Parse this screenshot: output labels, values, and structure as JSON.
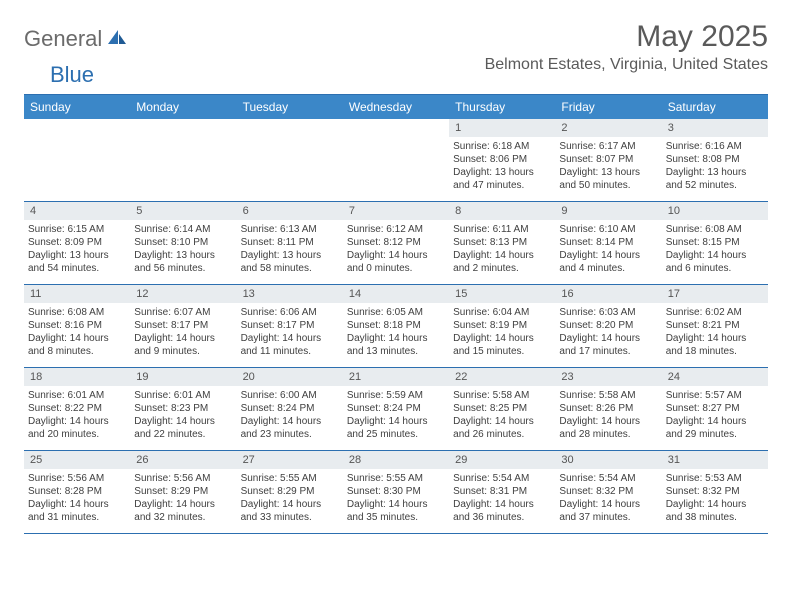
{
  "brand": {
    "general": "General",
    "blue": "Blue"
  },
  "title": "May 2025",
  "location": "Belmont Estates, Virginia, United States",
  "colors": {
    "header_bg": "#3b87c8",
    "rule": "#2c6fb0",
    "band": "#e8ecef",
    "text": "#404040",
    "title_text": "#5a5a5a"
  },
  "dow": [
    "Sunday",
    "Monday",
    "Tuesday",
    "Wednesday",
    "Thursday",
    "Friday",
    "Saturday"
  ],
  "weeks": [
    [
      null,
      null,
      null,
      null,
      {
        "n": "1",
        "sr": "6:18 AM",
        "ss": "8:06 PM",
        "dl1": "13 hours",
        "dl2": "and 47 minutes."
      },
      {
        "n": "2",
        "sr": "6:17 AM",
        "ss": "8:07 PM",
        "dl1": "13 hours",
        "dl2": "and 50 minutes."
      },
      {
        "n": "3",
        "sr": "6:16 AM",
        "ss": "8:08 PM",
        "dl1": "13 hours",
        "dl2": "and 52 minutes."
      }
    ],
    [
      {
        "n": "4",
        "sr": "6:15 AM",
        "ss": "8:09 PM",
        "dl1": "13 hours",
        "dl2": "and 54 minutes."
      },
      {
        "n": "5",
        "sr": "6:14 AM",
        "ss": "8:10 PM",
        "dl1": "13 hours",
        "dl2": "and 56 minutes."
      },
      {
        "n": "6",
        "sr": "6:13 AM",
        "ss": "8:11 PM",
        "dl1": "13 hours",
        "dl2": "and 58 minutes."
      },
      {
        "n": "7",
        "sr": "6:12 AM",
        "ss": "8:12 PM",
        "dl1": "14 hours",
        "dl2": "and 0 minutes."
      },
      {
        "n": "8",
        "sr": "6:11 AM",
        "ss": "8:13 PM",
        "dl1": "14 hours",
        "dl2": "and 2 minutes."
      },
      {
        "n": "9",
        "sr": "6:10 AM",
        "ss": "8:14 PM",
        "dl1": "14 hours",
        "dl2": "and 4 minutes."
      },
      {
        "n": "10",
        "sr": "6:08 AM",
        "ss": "8:15 PM",
        "dl1": "14 hours",
        "dl2": "and 6 minutes."
      }
    ],
    [
      {
        "n": "11",
        "sr": "6:08 AM",
        "ss": "8:16 PM",
        "dl1": "14 hours",
        "dl2": "and 8 minutes."
      },
      {
        "n": "12",
        "sr": "6:07 AM",
        "ss": "8:17 PM",
        "dl1": "14 hours",
        "dl2": "and 9 minutes."
      },
      {
        "n": "13",
        "sr": "6:06 AM",
        "ss": "8:17 PM",
        "dl1": "14 hours",
        "dl2": "and 11 minutes."
      },
      {
        "n": "14",
        "sr": "6:05 AM",
        "ss": "8:18 PM",
        "dl1": "14 hours",
        "dl2": "and 13 minutes."
      },
      {
        "n": "15",
        "sr": "6:04 AM",
        "ss": "8:19 PM",
        "dl1": "14 hours",
        "dl2": "and 15 minutes."
      },
      {
        "n": "16",
        "sr": "6:03 AM",
        "ss": "8:20 PM",
        "dl1": "14 hours",
        "dl2": "and 17 minutes."
      },
      {
        "n": "17",
        "sr": "6:02 AM",
        "ss": "8:21 PM",
        "dl1": "14 hours",
        "dl2": "and 18 minutes."
      }
    ],
    [
      {
        "n": "18",
        "sr": "6:01 AM",
        "ss": "8:22 PM",
        "dl1": "14 hours",
        "dl2": "and 20 minutes."
      },
      {
        "n": "19",
        "sr": "6:01 AM",
        "ss": "8:23 PM",
        "dl1": "14 hours",
        "dl2": "and 22 minutes."
      },
      {
        "n": "20",
        "sr": "6:00 AM",
        "ss": "8:24 PM",
        "dl1": "14 hours",
        "dl2": "and 23 minutes."
      },
      {
        "n": "21",
        "sr": "5:59 AM",
        "ss": "8:24 PM",
        "dl1": "14 hours",
        "dl2": "and 25 minutes."
      },
      {
        "n": "22",
        "sr": "5:58 AM",
        "ss": "8:25 PM",
        "dl1": "14 hours",
        "dl2": "and 26 minutes."
      },
      {
        "n": "23",
        "sr": "5:58 AM",
        "ss": "8:26 PM",
        "dl1": "14 hours",
        "dl2": "and 28 minutes."
      },
      {
        "n": "24",
        "sr": "5:57 AM",
        "ss": "8:27 PM",
        "dl1": "14 hours",
        "dl2": "and 29 minutes."
      }
    ],
    [
      {
        "n": "25",
        "sr": "5:56 AM",
        "ss": "8:28 PM",
        "dl1": "14 hours",
        "dl2": "and 31 minutes."
      },
      {
        "n": "26",
        "sr": "5:56 AM",
        "ss": "8:29 PM",
        "dl1": "14 hours",
        "dl2": "and 32 minutes."
      },
      {
        "n": "27",
        "sr": "5:55 AM",
        "ss": "8:29 PM",
        "dl1": "14 hours",
        "dl2": "and 33 minutes."
      },
      {
        "n": "28",
        "sr": "5:55 AM",
        "ss": "8:30 PM",
        "dl1": "14 hours",
        "dl2": "and 35 minutes."
      },
      {
        "n": "29",
        "sr": "5:54 AM",
        "ss": "8:31 PM",
        "dl1": "14 hours",
        "dl2": "and 36 minutes."
      },
      {
        "n": "30",
        "sr": "5:54 AM",
        "ss": "8:32 PM",
        "dl1": "14 hours",
        "dl2": "and 37 minutes."
      },
      {
        "n": "31",
        "sr": "5:53 AM",
        "ss": "8:32 PM",
        "dl1": "14 hours",
        "dl2": "and 38 minutes."
      }
    ]
  ],
  "labels": {
    "sunrise": "Sunrise: ",
    "sunset": "Sunset: ",
    "daylight": "Daylight: "
  }
}
